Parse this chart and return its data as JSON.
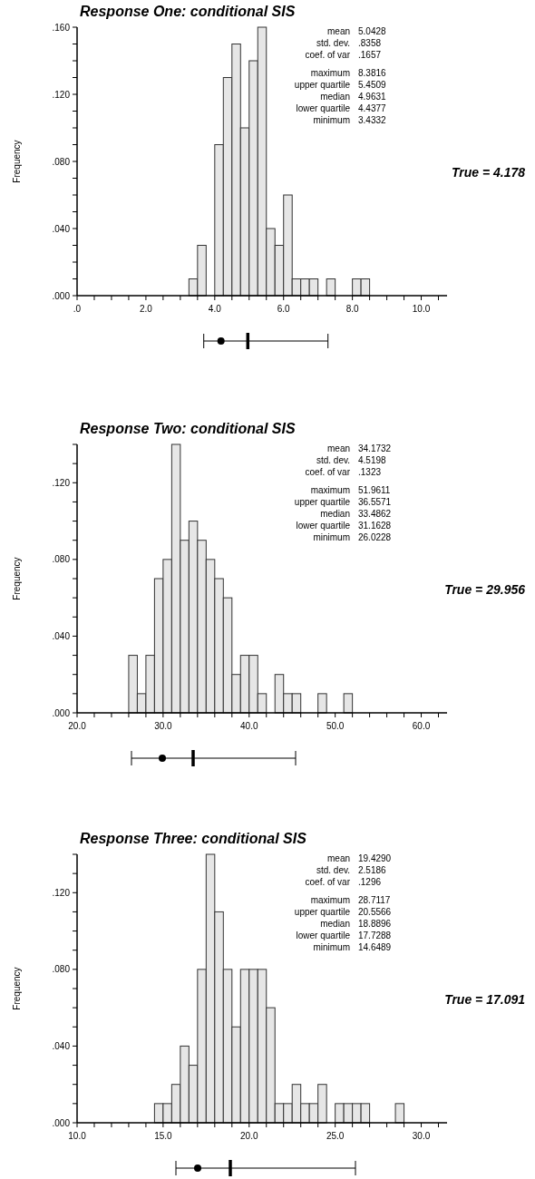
{
  "chart_data": [
    {
      "type": "histogram",
      "title": "Response One: conditional SIS",
      "ylabel": "Frequency",
      "color": "#e6e6e6",
      "bins": [
        3.25,
        3.5,
        3.75,
        4.0,
        4.25,
        4.5,
        4.75,
        5.0,
        5.25,
        5.5,
        5.75,
        6.0,
        6.25,
        6.5,
        6.75,
        7.0,
        7.25,
        7.5,
        7.75,
        8.0,
        8.25,
        8.5
      ],
      "values": [
        0.01,
        0.03,
        0,
        0.09,
        0.13,
        0.15,
        0.1,
        0.14,
        0.16,
        0.04,
        0.03,
        0.06,
        0.01,
        0.01,
        0.01,
        0,
        0.01,
        0,
        0,
        0.01,
        0.01
      ],
      "xlim": [
        0,
        10.75
      ],
      "xticks": [
        {
          "value": 0,
          "label": ".0"
        },
        {
          "value": 0.5,
          "label": null
        },
        {
          "value": 1,
          "label": null
        },
        {
          "value": 1.5,
          "label": null
        },
        {
          "value": 2,
          "label": "2.0"
        },
        {
          "value": 2.5,
          "label": null
        },
        {
          "value": 3,
          "label": null
        },
        {
          "value": 3.5,
          "label": null
        },
        {
          "value": 4,
          "label": "4.0"
        },
        {
          "value": 4.5,
          "label": null
        },
        {
          "value": 5,
          "label": null
        },
        {
          "value": 5.5,
          "label": null
        },
        {
          "value": 6,
          "label": "6.0"
        },
        {
          "value": 6.5,
          "label": null
        },
        {
          "value": 7,
          "label": null
        },
        {
          "value": 7.5,
          "label": null
        },
        {
          "value": 8,
          "label": "8.0"
        },
        {
          "value": 8.5,
          "label": null
        },
        {
          "value": 9,
          "label": null
        },
        {
          "value": 9.5,
          "label": null
        },
        {
          "value": 10,
          "label": "10.0"
        },
        {
          "value": 10.5,
          "label": null
        }
      ],
      "ylim": [
        0,
        0.16
      ],
      "yticks": [
        {
          "value": 0,
          "label": ".000"
        },
        {
          "value": 0.01,
          "label": null
        },
        {
          "value": 0.02,
          "label": null
        },
        {
          "value": 0.03,
          "label": null
        },
        {
          "value": 0.04,
          "label": ".040"
        },
        {
          "value": 0.05,
          "label": null
        },
        {
          "value": 0.06,
          "label": null
        },
        {
          "value": 0.07,
          "label": null
        },
        {
          "value": 0.08,
          "label": ".080"
        },
        {
          "value": 0.09,
          "label": null
        },
        {
          "value": 0.1,
          "label": null
        },
        {
          "value": 0.11,
          "label": null
        },
        {
          "value": 0.12,
          "label": ".120"
        },
        {
          "value": 0.13,
          "label": null
        },
        {
          "value": 0.14,
          "label": null
        },
        {
          "value": 0.15,
          "label": null
        },
        {
          "value": 0.16,
          "label": ".160"
        }
      ],
      "annotations": [
        "mean",
        "5.0428",
        "std. dev.",
        ".8358",
        "coef. of var",
        ".1657",
        "maximum",
        "8.3816",
        "upper quartile",
        "5.4509",
        "median",
        "4.9631",
        "lower quartile",
        "4.4377",
        "minimum",
        "3.4332",
        "True = 4.178"
      ]
    },
    {
      "type": "histogram",
      "title": "Response Two: conditional SIS",
      "ylabel": "Frequency",
      "color": "#e6e6e6",
      "bins": [
        26,
        27,
        28,
        29,
        30,
        31,
        32,
        33,
        34,
        35,
        36,
        37,
        38,
        39,
        40,
        41,
        42,
        43,
        44,
        45,
        46,
        47,
        48,
        49,
        50,
        51,
        52
      ],
      "values": [
        0.03,
        0.01,
        0.03,
        0.07,
        0.08,
        0.14,
        0.09,
        0.1,
        0.09,
        0.08,
        0.07,
        0.06,
        0.02,
        0.03,
        0.03,
        0.01,
        0,
        0.02,
        0.01,
        0.01,
        0,
        0,
        0.01,
        0,
        0,
        0.01
      ],
      "xlim": [
        20,
        63
      ],
      "xticks": [
        {
          "value": 20,
          "label": "20.0"
        },
        {
          "value": 22,
          "label": null
        },
        {
          "value": 24,
          "label": null
        },
        {
          "value": 26,
          "label": null
        },
        {
          "value": 28,
          "label": null
        },
        {
          "value": 30,
          "label": "30.0"
        },
        {
          "value": 32,
          "label": null
        },
        {
          "value": 34,
          "label": null
        },
        {
          "value": 36,
          "label": null
        },
        {
          "value": 38,
          "label": null
        },
        {
          "value": 40,
          "label": "40.0"
        },
        {
          "value": 42,
          "label": null
        },
        {
          "value": 44,
          "label": null
        },
        {
          "value": 46,
          "label": null
        },
        {
          "value": 48,
          "label": null
        },
        {
          "value": 50,
          "label": "50.0"
        },
        {
          "value": 52,
          "label": null
        },
        {
          "value": 54,
          "label": null
        },
        {
          "value": 56,
          "label": null
        },
        {
          "value": 58,
          "label": null
        },
        {
          "value": 60,
          "label": "60.0"
        },
        {
          "value": 62,
          "label": null
        }
      ],
      "ylim": [
        0,
        0.14
      ],
      "yticks": [
        {
          "value": 0,
          "label": ".000"
        },
        {
          "value": 0.01,
          "label": null
        },
        {
          "value": 0.02,
          "label": null
        },
        {
          "value": 0.03,
          "label": null
        },
        {
          "value": 0.04,
          "label": ".040"
        },
        {
          "value": 0.05,
          "label": null
        },
        {
          "value": 0.06,
          "label": null
        },
        {
          "value": 0.07,
          "label": null
        },
        {
          "value": 0.08,
          "label": ".080"
        },
        {
          "value": 0.09,
          "label": null
        },
        {
          "value": 0.1,
          "label": null
        },
        {
          "value": 0.11,
          "label": null
        },
        {
          "value": 0.12,
          "label": ".120"
        },
        {
          "value": 0.13,
          "label": null
        },
        {
          "value": 0.14,
          "label": null
        }
      ],
      "annotations": [
        "mean",
        "34.1732",
        "std. dev.",
        "4.5198",
        "coef. of var",
        ".1323",
        "maximum",
        "51.9611",
        "upper quartile",
        "36.5571",
        "median",
        "33.4862",
        "lower quartile",
        "31.1628",
        "minimum",
        "26.0228",
        "True = 29.956"
      ]
    },
    {
      "type": "histogram",
      "title": "Response Three: conditional SIS",
      "ylabel": "Frequency",
      "color": "#e6e6e6",
      "bins": [
        14.5,
        15,
        15.5,
        16,
        16.5,
        17,
        17.5,
        18,
        18.5,
        19,
        19.5,
        20,
        20.5,
        21,
        21.5,
        22,
        22.5,
        23,
        23.5,
        24,
        24.5,
        25,
        25.5,
        26,
        26.5,
        27,
        27.5,
        28,
        28.5,
        29
      ],
      "values": [
        0.01,
        0.01,
        0.02,
        0.04,
        0.03,
        0.08,
        0.14,
        0.11,
        0.08,
        0.05,
        0.08,
        0.08,
        0.08,
        0.06,
        0.01,
        0.01,
        0.02,
        0.01,
        0.01,
        0.02,
        0,
        0.01,
        0.01,
        0.01,
        0.01,
        0,
        0,
        0,
        0.01
      ],
      "xlim": [
        10,
        31.5
      ],
      "xticks": [
        {
          "value": 10,
          "label": "10.0"
        },
        {
          "value": 11,
          "label": null
        },
        {
          "value": 12,
          "label": null
        },
        {
          "value": 13,
          "label": null
        },
        {
          "value": 14,
          "label": null
        },
        {
          "value": 15,
          "label": "15.0"
        },
        {
          "value": 16,
          "label": null
        },
        {
          "value": 17,
          "label": null
        },
        {
          "value": 18,
          "label": null
        },
        {
          "value": 19,
          "label": null
        },
        {
          "value": 20,
          "label": "20.0"
        },
        {
          "value": 21,
          "label": null
        },
        {
          "value": 22,
          "label": null
        },
        {
          "value": 23,
          "label": null
        },
        {
          "value": 24,
          "label": null
        },
        {
          "value": 25,
          "label": "25.0"
        },
        {
          "value": 26,
          "label": null
        },
        {
          "value": 27,
          "label": null
        },
        {
          "value": 28,
          "label": null
        },
        {
          "value": 29,
          "label": null
        },
        {
          "value": 30,
          "label": "30.0"
        },
        {
          "value": 31,
          "label": null
        }
      ],
      "ylim": [
        0,
        0.14
      ],
      "yticks": [
        {
          "value": 0,
          "label": ".000"
        },
        {
          "value": 0.01,
          "label": null
        },
        {
          "value": 0.02,
          "label": null
        },
        {
          "value": 0.03,
          "label": null
        },
        {
          "value": 0.04,
          "label": ".040"
        },
        {
          "value": 0.05,
          "label": null
        },
        {
          "value": 0.06,
          "label": null
        },
        {
          "value": 0.07,
          "label": null
        },
        {
          "value": 0.08,
          "label": ".080"
        },
        {
          "value": 0.09,
          "label": null
        },
        {
          "value": 0.1,
          "label": null
        },
        {
          "value": 0.11,
          "label": null
        },
        {
          "value": 0.12,
          "label": ".120"
        },
        {
          "value": 0.13,
          "label": null
        },
        {
          "value": 0.14,
          "label": null
        }
      ],
      "annotations": [
        "mean",
        "19.4290",
        "std. dev.",
        "2.5186",
        "coef. of var",
        ".1296",
        "maximum",
        "28.7117",
        "upper quartile",
        "20.5566",
        "median",
        "18.8896",
        "lower quartile",
        "17.7288",
        "minimum",
        "14.6489",
        "True = 17.091"
      ]
    }
  ]
}
